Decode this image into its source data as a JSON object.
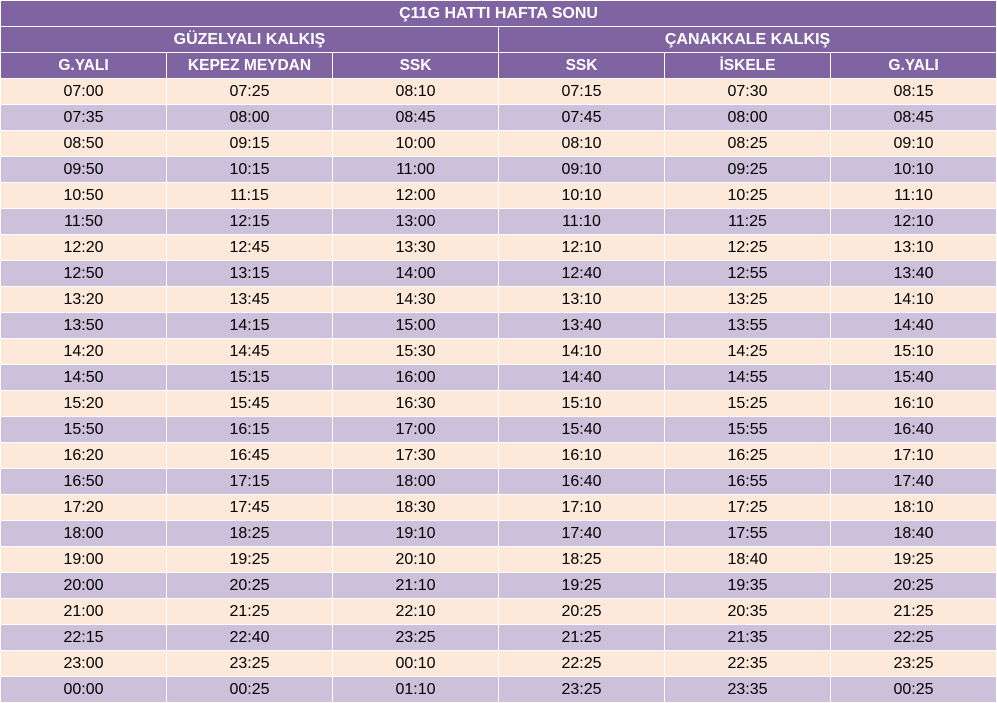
{
  "title": "Ç11G HATTI HAFTA SONU",
  "groups": [
    "GÜZELYALI KALKIŞ",
    "ÇANAKKALE KALKIŞ"
  ],
  "columns": [
    "G.YALI",
    "KEPEZ MEYDAN",
    "SSK",
    "SSK",
    "İSKELE",
    "G.YALI"
  ],
  "colors": {
    "header_bg": "#8064a2",
    "header_text": "#ffffff",
    "row_light": "#fde9d9",
    "row_dark": "#ccc0da"
  },
  "rows": [
    [
      "07:00",
      "07:25",
      "08:10",
      "07:15",
      "07:30",
      "08:15"
    ],
    [
      "07:35",
      "08:00",
      "08:45",
      "07:45",
      "08:00",
      "08:45"
    ],
    [
      "08:50",
      "09:15",
      "10:00",
      "08:10",
      "08:25",
      "09:10"
    ],
    [
      "09:50",
      "10:15",
      "11:00",
      "09:10",
      "09:25",
      "10:10"
    ],
    [
      "10:50",
      "11:15",
      "12:00",
      "10:10",
      "10:25",
      "11:10"
    ],
    [
      "11:50",
      "12:15",
      "13:00",
      "11:10",
      "11:25",
      "12:10"
    ],
    [
      "12:20",
      "12:45",
      "13:30",
      "12:10",
      "12:25",
      "13:10"
    ],
    [
      "12:50",
      "13:15",
      "14:00",
      "12:40",
      "12:55",
      "13:40"
    ],
    [
      "13:20",
      "13:45",
      "14:30",
      "13:10",
      "13:25",
      "14:10"
    ],
    [
      "13:50",
      "14:15",
      "15:00",
      "13:40",
      "13:55",
      "14:40"
    ],
    [
      "14:20",
      "14:45",
      "15:30",
      "14:10",
      "14:25",
      "15:10"
    ],
    [
      "14:50",
      "15:15",
      "16:00",
      "14:40",
      "14:55",
      "15:40"
    ],
    [
      "15:20",
      "15:45",
      "16:30",
      "15:10",
      "15:25",
      "16:10"
    ],
    [
      "15:50",
      "16:15",
      "17:00",
      "15:40",
      "15:55",
      "16:40"
    ],
    [
      "16:20",
      "16:45",
      "17:30",
      "16:10",
      "16:25",
      "17:10"
    ],
    [
      "16:50",
      "17:15",
      "18:00",
      "16:40",
      "16:55",
      "17:40"
    ],
    [
      "17:20",
      "17:45",
      "18:30",
      "17:10",
      "17:25",
      "18:10"
    ],
    [
      "18:00",
      "18:25",
      "19:10",
      "17:40",
      "17:55",
      "18:40"
    ],
    [
      "19:00",
      "19:25",
      "20:10",
      "18:25",
      "18:40",
      "19:25"
    ],
    [
      "20:00",
      "20:25",
      "21:10",
      "19:25",
      "19:35",
      "20:25"
    ],
    [
      "21:00",
      "21:25",
      "22:10",
      "20:25",
      "20:35",
      "21:25"
    ],
    [
      "22:15",
      "22:40",
      "23:25",
      "21:25",
      "21:35",
      "22:25"
    ],
    [
      "23:00",
      "23:25",
      "00:10",
      "22:25",
      "22:35",
      "23:25"
    ],
    [
      "00:00",
      "00:25",
      "01:10",
      "23:25",
      "23:35",
      "00:25"
    ]
  ]
}
